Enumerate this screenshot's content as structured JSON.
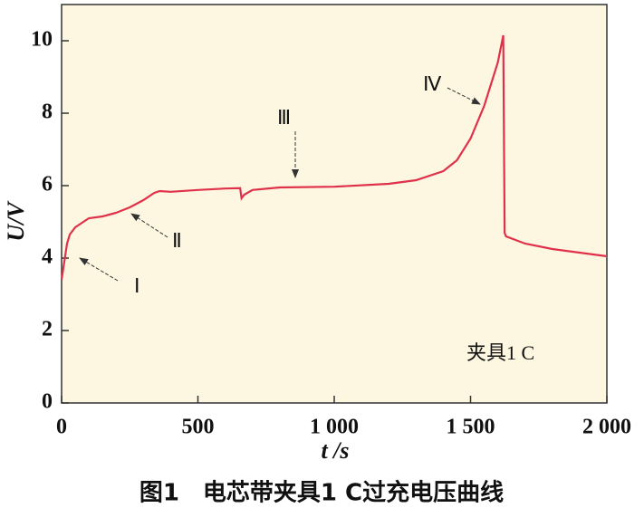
{
  "chart_data": {
    "type": "line",
    "caption": "图1　电芯带夹具1 C过充电压曲线",
    "x_label": "t /s",
    "y_label": "U/V",
    "annotations": [
      "Ⅰ",
      "Ⅱ",
      "Ⅲ",
      "Ⅳ",
      "夹具1 C"
    ],
    "xlim": [
      0,
      2000
    ],
    "ylim": [
      0,
      11
    ],
    "xticks": [
      0,
      500,
      {
        "value": 1000,
        "label": "1 000"
      },
      {
        "value": 1500,
        "label": "1 500"
      },
      {
        "value": 2000,
        "label": "2 000"
      }
    ],
    "yticks": [
      0,
      2,
      4,
      6,
      8,
      10
    ],
    "series": [
      {
        "color": "#e0314b",
        "x": [
          0,
          10,
          20,
          30,
          50,
          80,
          100,
          150,
          200,
          250,
          300,
          340,
          360,
          400,
          500,
          600,
          655,
          660,
          670,
          700,
          800,
          1000,
          1200,
          1300,
          1400,
          1450,
          1500,
          1550,
          1600,
          1620,
          1625,
          1630,
          1700,
          1800,
          1900,
          2000
        ],
        "values": [
          3.4,
          3.9,
          4.4,
          4.65,
          4.85,
          5.0,
          5.1,
          5.15,
          5.25,
          5.4,
          5.6,
          5.8,
          5.85,
          5.83,
          5.88,
          5.92,
          5.93,
          5.65,
          5.75,
          5.88,
          5.95,
          5.97,
          6.05,
          6.15,
          6.4,
          6.7,
          7.3,
          8.2,
          9.4,
          10.15,
          4.7,
          4.6,
          4.4,
          4.25,
          4.15,
          4.05
        ]
      }
    ]
  }
}
